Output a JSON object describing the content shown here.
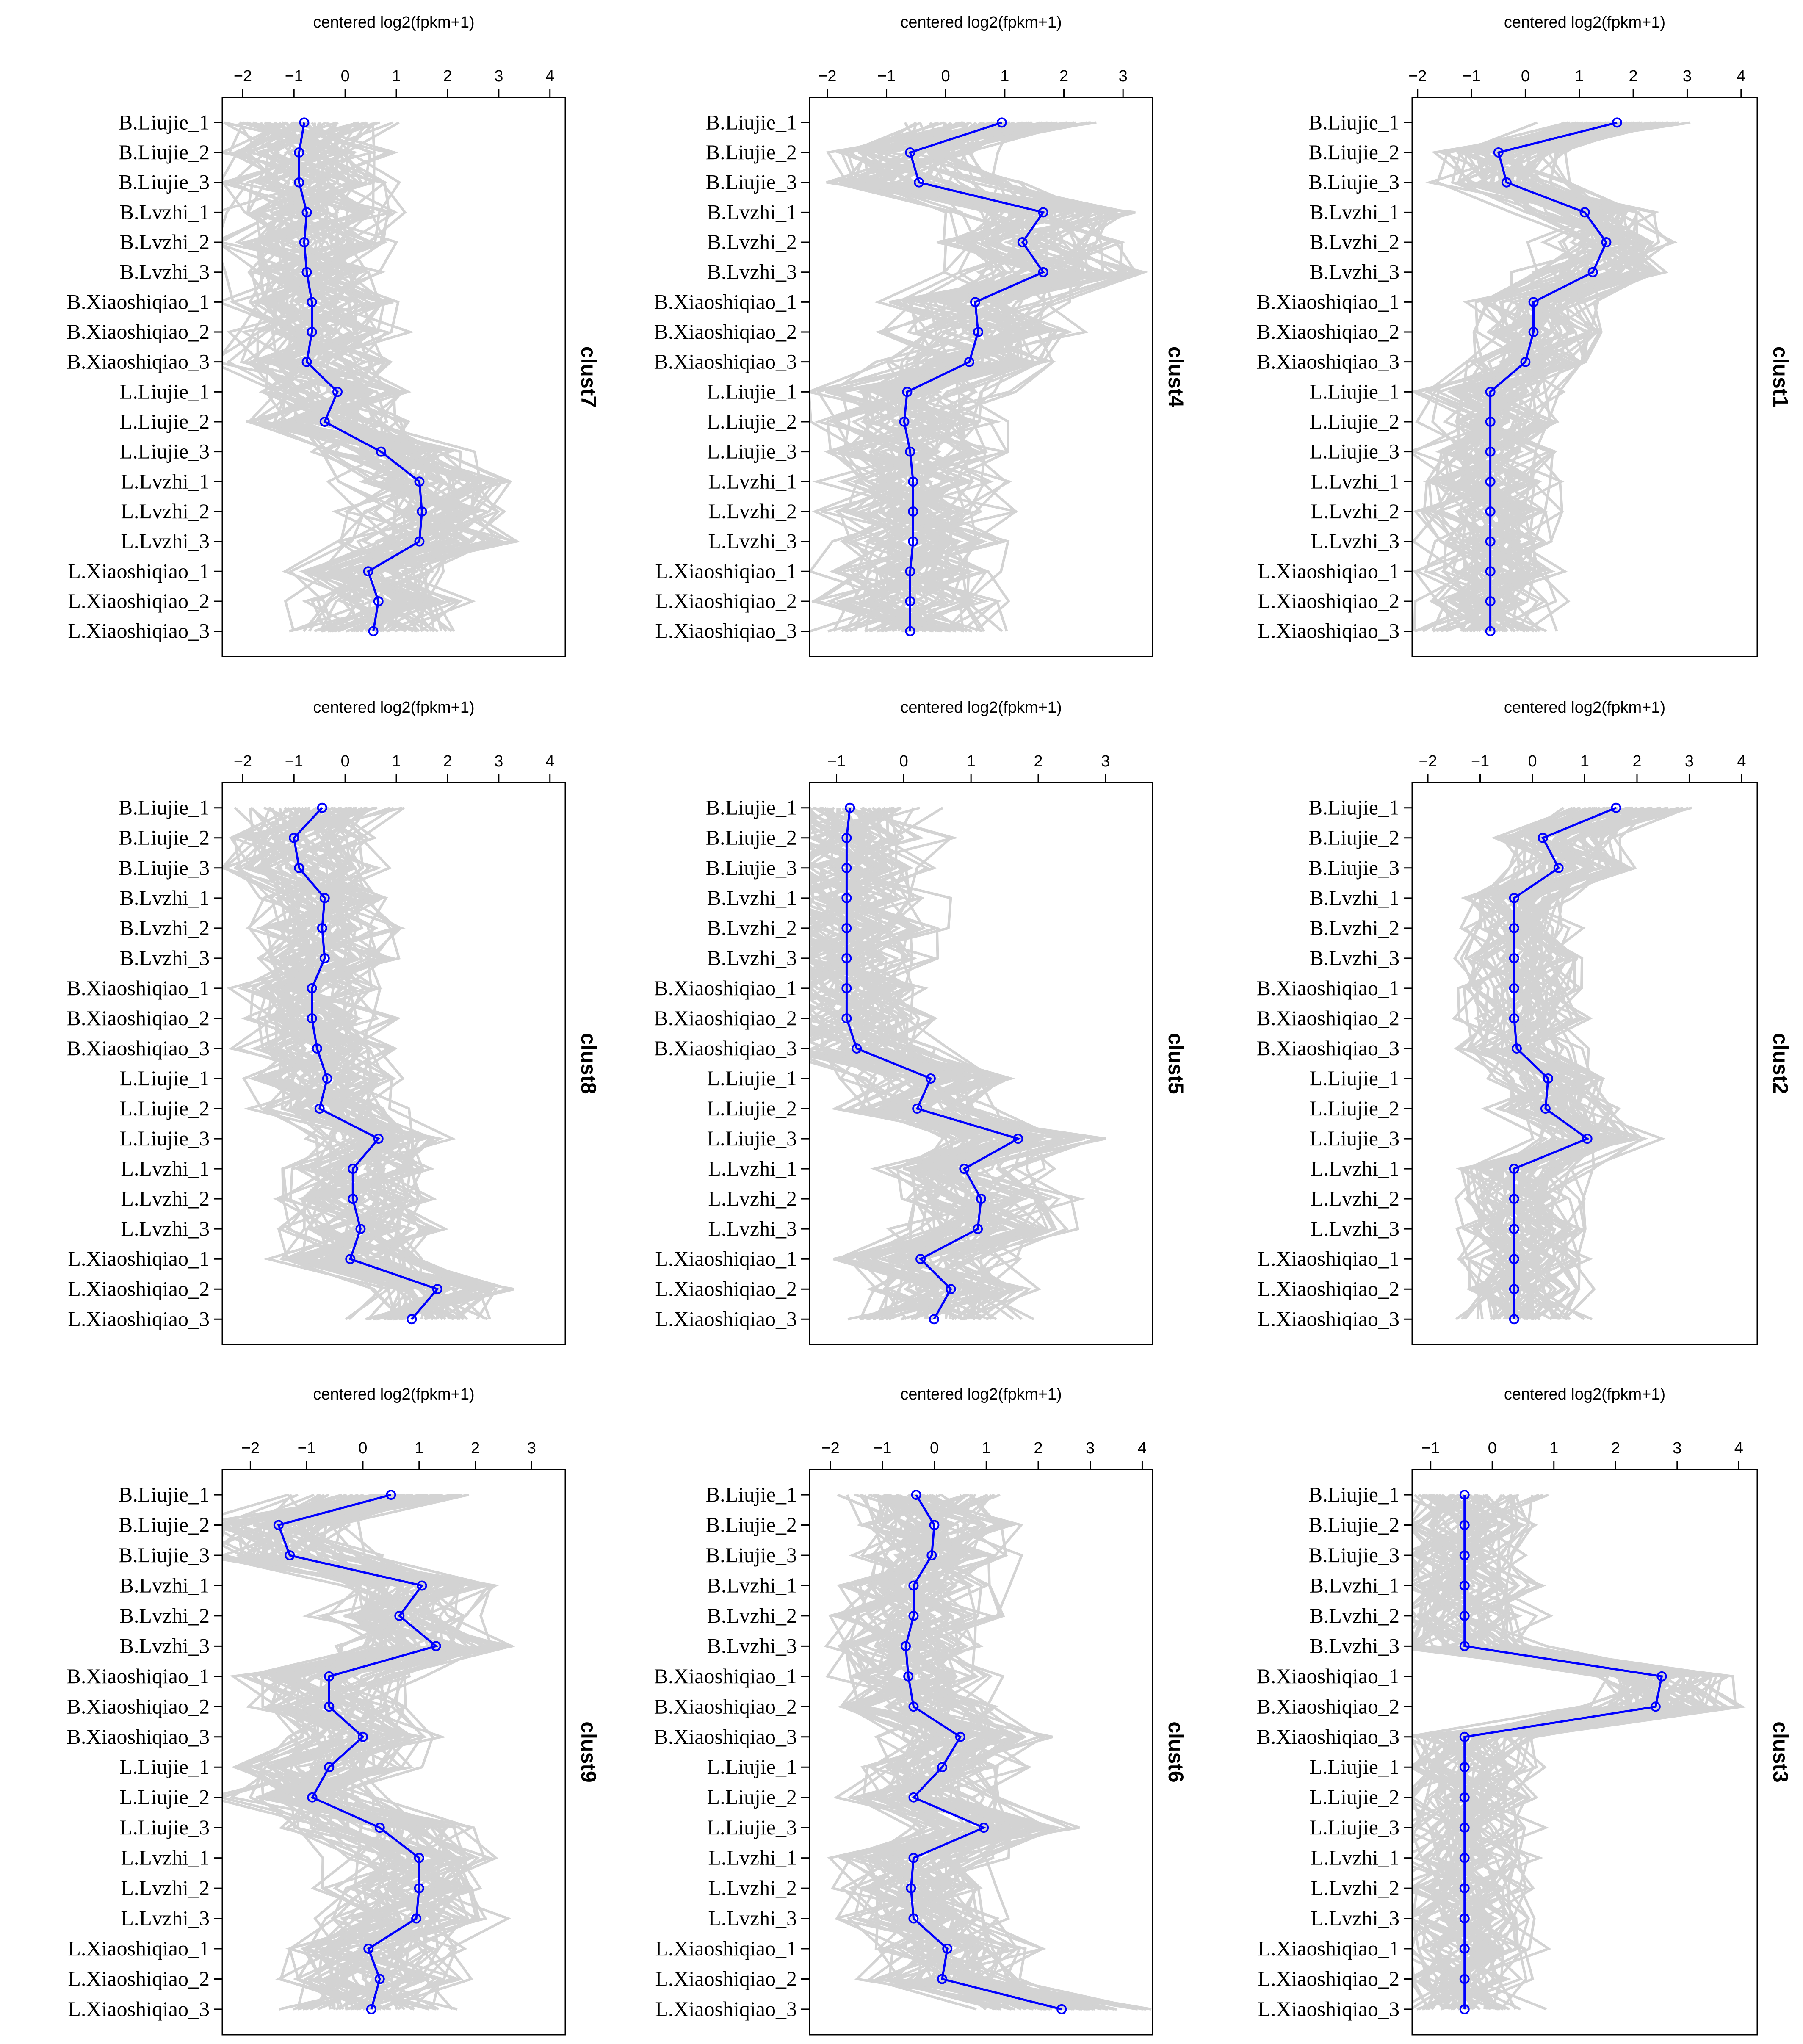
{
  "figure": {
    "samples": [
      "B.Liujie_1",
      "B.Liujie_2",
      "B.Liujie_3",
      "B.Lvzhi_1",
      "B.Lvzhi_2",
      "B.Lvzhi_3",
      "B.Xiaoshiqiao_1",
      "B.Xiaoshiqiao_2",
      "B.Xiaoshiqiao_3",
      "L.Liujie_1",
      "L.Liujie_2",
      "L.Liujie_3",
      "L.Lvzhi_1",
      "L.Lvzhi_2",
      "L.Lvzhi_3",
      "L.Xiaoshiqiao_1",
      "L.Xiaoshiqiao_2",
      "L.Xiaoshiqiao_3"
    ],
    "colors": {
      "profiles": "#d3d3d3",
      "centroid": "#0000ff",
      "axis": "#000000"
    }
  },
  "chart_data": [
    {
      "type": "line",
      "name": "clust7",
      "xlabel": "centered log2(fpkm+1)",
      "xticks": [
        -2,
        -1,
        0,
        1,
        2,
        3,
        4
      ],
      "xlim": [
        -2.4,
        4.3
      ],
      "profile_band": [
        -1.3,
        1.5
      ],
      "series": [
        {
          "name": "clust7",
          "values": [
            -0.8,
            -0.9,
            -0.9,
            -0.75,
            -0.8,
            -0.75,
            -0.65,
            -0.65,
            -0.75,
            -0.15,
            -0.4,
            0.7,
            1.45,
            1.5,
            1.45,
            0.45,
            0.65,
            0.55
          ]
        }
      ]
    },
    {
      "type": "line",
      "name": "clust4",
      "xlabel": "centered log2(fpkm+1)",
      "xticks": [
        -2,
        -1,
        0,
        1,
        2,
        3
      ],
      "xlim": [
        -2.3,
        3.5
      ],
      "profile_band": [
        -1.2,
        1.3
      ],
      "series": [
        {
          "name": "clust4",
          "values": [
            0.95,
            -0.6,
            -0.45,
            1.65,
            1.3,
            1.65,
            0.5,
            0.55,
            0.4,
            -0.65,
            -0.7,
            -0.6,
            -0.55,
            -0.55,
            -0.55,
            -0.6,
            -0.6,
            -0.6
          ]
        }
      ]
    },
    {
      "type": "line",
      "name": "clust1",
      "xlabel": "centered log2(fpkm+1)",
      "xticks": [
        -2,
        -1,
        0,
        1,
        2,
        3,
        4
      ],
      "xlim": [
        -2.1,
        4.3
      ],
      "profile_band": [
        -1.0,
        0.9
      ],
      "series": [
        {
          "name": "clust1",
          "values": [
            1.7,
            -0.5,
            -0.35,
            1.1,
            1.5,
            1.25,
            0.15,
            0.15,
            0.0,
            -0.65,
            -0.65,
            -0.65,
            -0.65,
            -0.65,
            -0.65,
            -0.65,
            -0.65,
            -0.65
          ]
        }
      ]
    },
    {
      "type": "line",
      "name": "clust8",
      "xlabel": "centered log2(fpkm+1)",
      "xticks": [
        -2,
        -1,
        0,
        1,
        2,
        3,
        4
      ],
      "xlim": [
        -2.4,
        4.3
      ],
      "profile_band": [
        -1.2,
        1.2
      ],
      "series": [
        {
          "name": "clust8",
          "values": [
            -0.45,
            -1.0,
            -0.9,
            -0.4,
            -0.45,
            -0.4,
            -0.65,
            -0.65,
            -0.55,
            -0.35,
            -0.5,
            0.65,
            0.15,
            0.15,
            0.3,
            0.1,
            1.8,
            1.3
          ]
        }
      ]
    },
    {
      "type": "line",
      "name": "clust5",
      "xlabel": "centered log2(fpkm+1)",
      "xticks": [
        -1,
        0,
        1,
        2,
        3
      ],
      "xlim": [
        -1.4,
        3.7
      ],
      "profile_band": [
        -0.9,
        1.0
      ],
      "series": [
        {
          "name": "clust5",
          "values": [
            -0.8,
            -0.85,
            -0.85,
            -0.85,
            -0.85,
            -0.85,
            -0.85,
            -0.85,
            -0.7,
            0.4,
            0.2,
            1.7,
            0.9,
            1.15,
            1.1,
            0.25,
            0.7,
            0.45
          ]
        }
      ]
    },
    {
      "type": "line",
      "name": "clust2",
      "xlabel": "centered log2(fpkm+1)",
      "xticks": [
        -2,
        -1,
        0,
        1,
        2,
        3,
        4
      ],
      "xlim": [
        -2.3,
        4.3
      ],
      "profile_band": [
        -0.6,
        1.0
      ],
      "series": [
        {
          "name": "clust2",
          "values": [
            1.6,
            0.2,
            0.5,
            -0.35,
            -0.35,
            -0.35,
            -0.35,
            -0.35,
            -0.3,
            0.3,
            0.25,
            1.05,
            -0.35,
            -0.35,
            -0.35,
            -0.35,
            -0.35,
            -0.35
          ]
        }
      ]
    },
    {
      "type": "line",
      "name": "clust9",
      "xlabel": "centered log2(fpkm+1)",
      "xticks": [
        -2,
        -1,
        0,
        1,
        2,
        3
      ],
      "xlim": [
        -2.5,
        3.6
      ],
      "profile_band": [
        -1.3,
        1.2
      ],
      "series": [
        {
          "name": "clust9",
          "values": [
            0.5,
            -1.5,
            -1.3,
            1.05,
            0.65,
            1.3,
            -0.6,
            -0.6,
            0.0,
            -0.6,
            -0.9,
            0.3,
            1.0,
            1.0,
            0.95,
            0.1,
            0.3,
            0.15
          ]
        }
      ]
    },
    {
      "type": "line",
      "name": "clust6",
      "xlabel": "centered log2(fpkm+1)",
      "xticks": [
        -2,
        -1,
        0,
        1,
        2,
        3,
        4
      ],
      "xlim": [
        -2.4,
        4.2
      ],
      "profile_band": [
        -1.2,
        1.3
      ],
      "series": [
        {
          "name": "clust6",
          "values": [
            -0.35,
            0.0,
            -0.05,
            -0.4,
            -0.4,
            -0.55,
            -0.5,
            -0.4,
            0.5,
            0.15,
            -0.4,
            0.95,
            -0.4,
            -0.45,
            -0.4,
            0.25,
            0.15,
            2.45
          ]
        }
      ]
    },
    {
      "type": "line",
      "name": "clust3",
      "xlabel": "centered log2(fpkm+1)",
      "xticks": [
        -1,
        0,
        1,
        2,
        3,
        4
      ],
      "xlim": [
        -1.3,
        4.3
      ],
      "profile_band": [
        -0.7,
        0.9
      ],
      "series": [
        {
          "name": "clust3",
          "values": [
            -0.45,
            -0.45,
            -0.45,
            -0.45,
            -0.45,
            -0.45,
            2.75,
            2.65,
            -0.45,
            -0.45,
            -0.45,
            -0.45,
            -0.45,
            -0.45,
            -0.45,
            -0.45,
            -0.45,
            -0.45
          ]
        }
      ]
    }
  ]
}
